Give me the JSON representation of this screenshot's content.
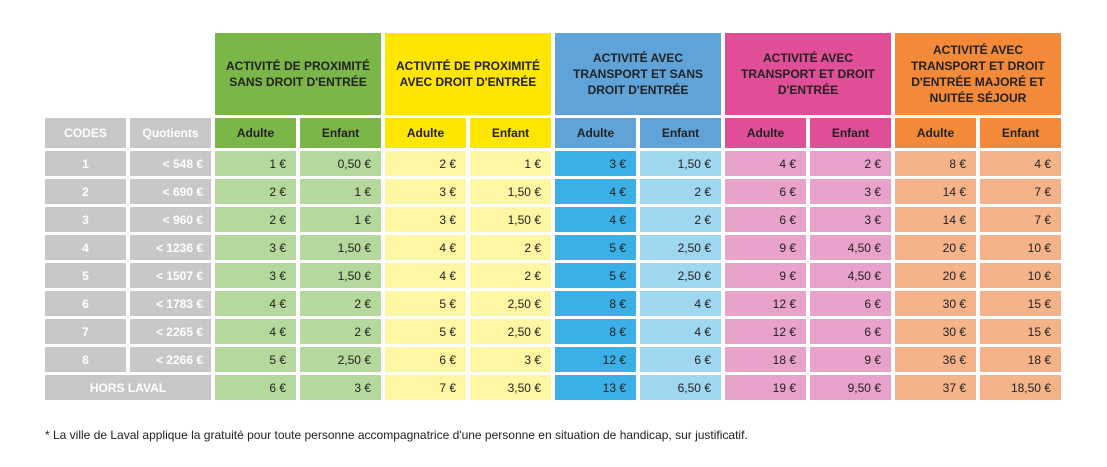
{
  "colors": {
    "green_dark": "#7ab648",
    "green_light": "#b5d99c",
    "yellow_dark": "#ffe600",
    "yellow_light": "#fff6a3",
    "blue_dark": "#5fa3d8",
    "blue_cell": "#3ab0e6",
    "blue_light": "#9fd6f0",
    "pink_dark": "#e04e97",
    "pink_light": "#e9a2c9",
    "orange_dark": "#f28a3a",
    "orange_light": "#f5b38a",
    "gray": "#c8c8c8"
  },
  "table": {
    "groups": [
      {
        "label": "ACTIVITÉ DE PROXIMITÉ SANS DROIT D'ENTRÉE"
      },
      {
        "label": "ACTIVITÉ DE PROXIMITÉ AVEC DROIT D'ENTRÉE"
      },
      {
        "label": "ACTIVITÉ AVEC TRANSPORT ET SANS DROIT D'ENTRÉE"
      },
      {
        "label": "ACTIVITÉ AVEC TRANSPORT ET DROIT D'ENTRÉE"
      },
      {
        "label": "ACTIVITÉ AVEC TRANSPORT ET DROIT D'ENTRÉE MAJORÉ ET NUITÉE SÉJOUR"
      }
    ],
    "col_codes": "CODES",
    "col_quotients": "Quotients",
    "adult": "Adulte",
    "child": "Enfant",
    "rows": [
      {
        "code": "1",
        "quotient": "< 548 €",
        "values": [
          "1 €",
          "0,50 €",
          "2 €",
          "1 €",
          "3 €",
          "1,50 €",
          "4 €",
          "2 €",
          "8 €",
          "4 €"
        ]
      },
      {
        "code": "2",
        "quotient": "< 690 €",
        "values": [
          "2 €",
          "1 €",
          "3 €",
          "1,50 €",
          "4 €",
          "2 €",
          "6 €",
          "3 €",
          "14 €",
          "7 €"
        ]
      },
      {
        "code": "3",
        "quotient": "< 960 €",
        "values": [
          "2 €",
          "1 €",
          "3 €",
          "1,50 €",
          "4 €",
          "2 €",
          "6 €",
          "3 €",
          "14 €",
          "7 €"
        ]
      },
      {
        "code": "4",
        "quotient": "< 1236 €",
        "values": [
          "3 €",
          "1,50 €",
          "4 €",
          "2 €",
          "5 €",
          "2,50 €",
          "9 €",
          "4,50 €",
          "20 €",
          "10 €"
        ]
      },
      {
        "code": "5",
        "quotient": "< 1507 €",
        "values": [
          "3 €",
          "1,50 €",
          "4 €",
          "2 €",
          "5 €",
          "2,50 €",
          "9 €",
          "4,50 €",
          "20 €",
          "10 €"
        ]
      },
      {
        "code": "6",
        "quotient": "< 1783 €",
        "values": [
          "4 €",
          "2 €",
          "5 €",
          "2,50 €",
          "8 €",
          "4 €",
          "12 €",
          "6 €",
          "30 €",
          "15 €"
        ]
      },
      {
        "code": "7",
        "quotient": "< 2265 €",
        "values": [
          "4 €",
          "2 €",
          "5 €",
          "2,50 €",
          "8 €",
          "4 €",
          "12 €",
          "6 €",
          "30 €",
          "15 €"
        ]
      },
      {
        "code": "8",
        "quotient": "< 2266 €",
        "values": [
          "5 €",
          "2,50 €",
          "6 €",
          "3 €",
          "12 €",
          "6 €",
          "18 €",
          "9 €",
          "36 €",
          "18 €"
        ]
      }
    ],
    "hors_laval": {
      "label": "HORS LAVAL",
      "values": [
        "6 €",
        "3 €",
        "7 €",
        "3,50 €",
        "13 €",
        "6,50 €",
        "19 €",
        "9,50 €",
        "37 €",
        "18,50 €"
      ]
    }
  },
  "footnote": "* La ville de Laval applique la gratuité pour toute personne accompagnatrice d'une personne en situation de handicap, sur justificatif."
}
